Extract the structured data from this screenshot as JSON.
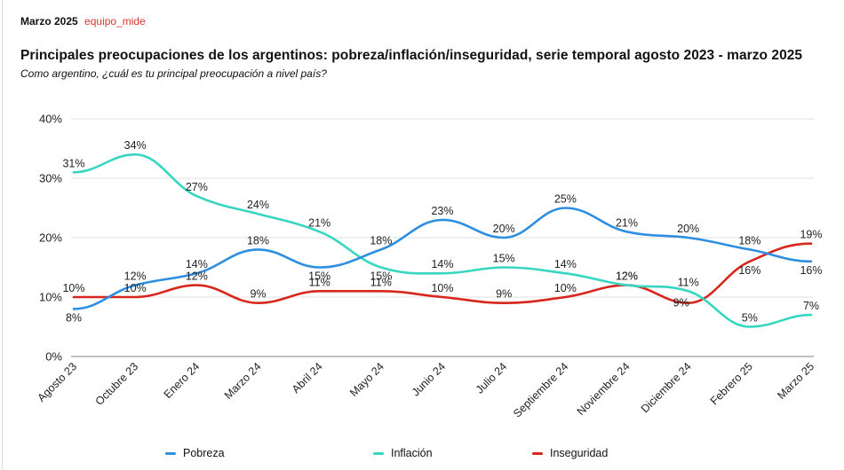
{
  "header": {
    "date": "Marzo 2025",
    "brand": "equipo_mide"
  },
  "title": "Principales preocupaciones de los argentinos: pobreza/inflación/inseguridad, serie temporal agosto 2023 - marzo 2025",
  "subtitle": "Como argentino, ¿cuál es tu principal preocupación a nivel país?",
  "colors": {
    "brand": "#d6372e",
    "pobreza": "#2e8fe0",
    "inflacion": "#37d6c0",
    "inseguridad": "#d8261c",
    "grid": "#e2e2e2",
    "axis": "#9a9a9a"
  },
  "chart_data": {
    "type": "line",
    "title": "Principales preocupaciones de los argentinos: pobreza/inflación/inseguridad, serie temporal agosto 2023 - marzo 2025",
    "subtitle": "Como argentino, ¿cuál es tu principal preocupación a nivel país?",
    "xlabel": "",
    "ylabel": "",
    "ylim": [
      0,
      40
    ],
    "yticks": [
      0,
      10,
      20,
      30,
      40
    ],
    "ytick_labels": [
      "0%",
      "10%",
      "20%",
      "30%",
      "40%"
    ],
    "grid": true,
    "smooth": true,
    "legend_position": "bottom",
    "categories": [
      "Agosto 23",
      "Octubre 23",
      "Enero 24",
      "Marzo 24",
      "Abril 24",
      "Mayo 24",
      "Junio 24",
      "Julio 24",
      "Septiembre 24",
      "Noviembre 24",
      "Diciembre 24",
      "Febrero 25",
      "Marzo 25"
    ],
    "series": [
      {
        "name": "Pobreza",
        "key": "pobreza",
        "values": [
          8,
          12,
          14,
          18,
          15,
          18,
          23,
          20,
          25,
          21,
          20,
          18,
          16
        ],
        "labels": [
          "8%",
          "12%",
          "14%",
          "18%",
          "15%",
          "18%",
          "23%",
          "20%",
          "25%",
          "21%",
          "20%",
          "18%",
          "16%"
        ]
      },
      {
        "name": "Inflación",
        "key": "inflacion",
        "values": [
          31,
          34,
          27,
          24,
          21,
          15,
          14,
          15,
          14,
          12,
          11,
          5,
          7
        ],
        "labels": [
          "31%",
          "34%",
          "27%",
          "24%",
          "21%",
          "15%",
          "14%",
          "15%",
          "14%",
          "12%",
          "11%",
          "5%",
          "7%"
        ]
      },
      {
        "name": "Inseguridad",
        "key": "inseguridad",
        "values": [
          10,
          10,
          12,
          9,
          11,
          11,
          10,
          9,
          10,
          12,
          9,
          16,
          19
        ],
        "labels": [
          "10%",
          "10%",
          "12%",
          "9%",
          "11%",
          "11%",
          "10%",
          "9%",
          "10%",
          "12%",
          "9%",
          "16%",
          "19%"
        ]
      }
    ]
  },
  "legend": [
    {
      "label": "Pobreza",
      "key": "pobreza"
    },
    {
      "label": "Inflación",
      "key": "inflacion"
    },
    {
      "label": "Inseguridad",
      "key": "inseguridad"
    }
  ]
}
